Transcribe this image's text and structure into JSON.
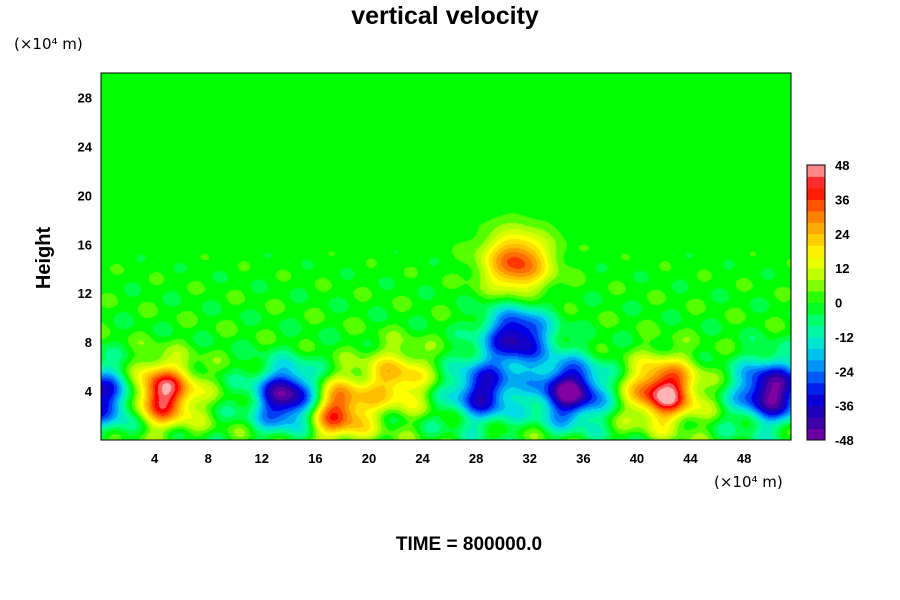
{
  "chart_data": {
    "type": "heatmap",
    "title": "vertical velocity",
    "xlabel": "",
    "ylabel": "Height",
    "x_unit_label": "(×10⁴ m)",
    "y_unit_label": "(×10⁴ m)",
    "xlim": [
      0,
      51.5
    ],
    "ylim": [
      0,
      30
    ],
    "x_ticks": [
      4,
      8,
      12,
      16,
      20,
      24,
      28,
      32,
      36,
      40,
      44,
      48
    ],
    "y_ticks": [
      4,
      8,
      12,
      16,
      20,
      24,
      28
    ],
    "colorbar": {
      "range": [
        -48,
        48
      ],
      "ticks": [
        48,
        36,
        24,
        12,
        0,
        -12,
        -24,
        -36,
        -48
      ],
      "colormap": "rainbow (purple → blue → cyan → green → yellow → red → pink)"
    },
    "features": [
      {
        "x": 4.5,
        "y": 3.8,
        "value": 48
      },
      {
        "x": 42,
        "y": 4.0,
        "value": 48
      },
      {
        "x": 14,
        "y": 3.5,
        "value": -48
      },
      {
        "x": 35,
        "y": 4.0,
        "value": -48
      },
      {
        "x": 50,
        "y": 4.0,
        "value": -48
      },
      {
        "x": 17.5,
        "y": 2.5,
        "value": 40
      },
      {
        "x": 22,
        "y": 5.0,
        "value": 24
      },
      {
        "x": 28.5,
        "y": 4.0,
        "value": -36
      },
      {
        "x": 31,
        "y": 8.5,
        "value": -40
      },
      {
        "x": 31,
        "y": 14.5,
        "value": 36
      },
      {
        "x": 0.5,
        "y": 3.5,
        "value": -36
      }
    ]
  },
  "footer": {
    "time_label": "TIME = 800000.0"
  }
}
